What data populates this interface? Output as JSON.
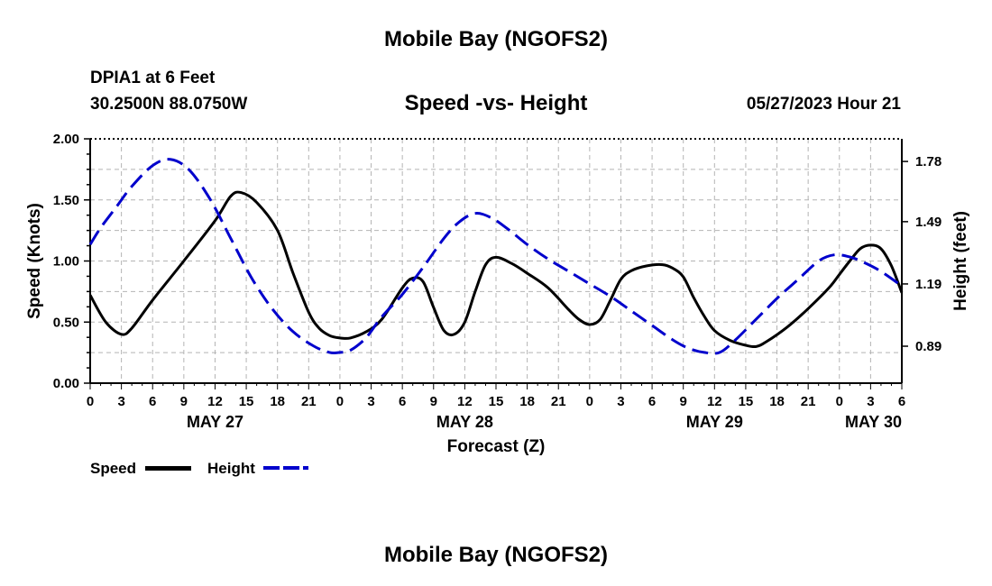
{
  "header": {
    "title": "Mobile Bay (NGOFS2)",
    "station": "DPIA1 at 6 Feet",
    "coordinates": "30.2500N  88.0750W",
    "subtitle": "Speed -vs- Height",
    "timestamp": "05/27/2023 Hour 21"
  },
  "footer": {
    "title": "Mobile Bay (NGOFS2)"
  },
  "legend": {
    "speed_label": "Speed",
    "height_label": "Height"
  },
  "chart_data": {
    "type": "line",
    "title": "Speed -vs- Height",
    "xlabel": "Forecast (Z)",
    "ylabel": "Speed (Knots)",
    "y2label": "Height (feet)",
    "x_range_hours": [
      0,
      78
    ],
    "ylim": [
      0,
      2.0
    ],
    "y2lim": [
      0.712,
      1.889
    ],
    "grid": true,
    "x_ticks": [
      {
        "hour": 0,
        "label": "0"
      },
      {
        "hour": 3,
        "label": "3"
      },
      {
        "hour": 6,
        "label": "6"
      },
      {
        "hour": 9,
        "label": "9"
      },
      {
        "hour": 12,
        "label": "12"
      },
      {
        "hour": 15,
        "label": "15"
      },
      {
        "hour": 18,
        "label": "18"
      },
      {
        "hour": 21,
        "label": "21"
      },
      {
        "hour": 24,
        "label": "0"
      },
      {
        "hour": 27,
        "label": "3"
      },
      {
        "hour": 30,
        "label": "6"
      },
      {
        "hour": 33,
        "label": "9"
      },
      {
        "hour": 36,
        "label": "12"
      },
      {
        "hour": 39,
        "label": "15"
      },
      {
        "hour": 42,
        "label": "18"
      },
      {
        "hour": 45,
        "label": "21"
      },
      {
        "hour": 48,
        "label": "0"
      },
      {
        "hour": 51,
        "label": "3"
      },
      {
        "hour": 54,
        "label": "6"
      },
      {
        "hour": 57,
        "label": "9"
      },
      {
        "hour": 60,
        "label": "12"
      },
      {
        "hour": 63,
        "label": "15"
      },
      {
        "hour": 66,
        "label": "18"
      },
      {
        "hour": 69,
        "label": "21"
      },
      {
        "hour": 72,
        "label": "0"
      },
      {
        "hour": 75,
        "label": "3"
      },
      {
        "hour": 78,
        "label": "6"
      }
    ],
    "date_labels": [
      {
        "hour": 12,
        "label": "MAY 27"
      },
      {
        "hour": 36,
        "label": "MAY 28"
      },
      {
        "hour": 60,
        "label": "MAY 29"
      },
      {
        "hour": 78,
        "label": "MAY 30"
      }
    ],
    "y_ticks": [
      {
        "value": 0.0,
        "label": "0.00"
      },
      {
        "value": 0.5,
        "label": "0.50"
      },
      {
        "value": 1.0,
        "label": "1.00"
      },
      {
        "value": 1.5,
        "label": "1.50"
      },
      {
        "value": 2.0,
        "label": "2.00"
      }
    ],
    "y2_ticks": [
      {
        "value": 0.89,
        "label": "0.89"
      },
      {
        "value": 1.19,
        "label": "1.19"
      },
      {
        "value": 1.49,
        "label": "1.49"
      },
      {
        "value": 1.78,
        "label": "1.78"
      }
    ],
    "series": [
      {
        "name": "Speed",
        "axis": "left",
        "color": "#000000",
        "dash": "solid",
        "points": [
          [
            0,
            0.72
          ],
          [
            1.5,
            0.5
          ],
          [
            3,
            0.4
          ],
          [
            4,
            0.45
          ],
          [
            6,
            0.68
          ],
          [
            9,
            1.0
          ],
          [
            12,
            1.33
          ],
          [
            13.5,
            1.53
          ],
          [
            14.5,
            1.56
          ],
          [
            16,
            1.48
          ],
          [
            18,
            1.25
          ],
          [
            19.5,
            0.9
          ],
          [
            21,
            0.58
          ],
          [
            22,
            0.45
          ],
          [
            23,
            0.39
          ],
          [
            24,
            0.37
          ],
          [
            25,
            0.37
          ],
          [
            26.5,
            0.42
          ],
          [
            28,
            0.52
          ],
          [
            30,
            0.78
          ],
          [
            31,
            0.86
          ],
          [
            32,
            0.83
          ],
          [
            33,
            0.62
          ],
          [
            34,
            0.43
          ],
          [
            35,
            0.4
          ],
          [
            36,
            0.5
          ],
          [
            37,
            0.75
          ],
          [
            38,
            0.97
          ],
          [
            39,
            1.03
          ],
          [
            40.5,
            0.98
          ],
          [
            42,
            0.9
          ],
          [
            44,
            0.78
          ],
          [
            46,
            0.6
          ],
          [
            47,
            0.52
          ],
          [
            48,
            0.48
          ],
          [
            49,
            0.52
          ],
          [
            50,
            0.68
          ],
          [
            51,
            0.85
          ],
          [
            52,
            0.92
          ],
          [
            53.5,
            0.96
          ],
          [
            55,
            0.97
          ],
          [
            56,
            0.94
          ],
          [
            57,
            0.87
          ],
          [
            58,
            0.7
          ],
          [
            59,
            0.55
          ],
          [
            60,
            0.43
          ],
          [
            61.5,
            0.35
          ],
          [
            63,
            0.31
          ],
          [
            64,
            0.3
          ],
          [
            65,
            0.34
          ],
          [
            67,
            0.46
          ],
          [
            69,
            0.61
          ],
          [
            71,
            0.78
          ],
          [
            72,
            0.89
          ],
          [
            73,
            1.0
          ],
          [
            74,
            1.1
          ],
          [
            75,
            1.13
          ],
          [
            76,
            1.1
          ],
          [
            77,
            0.96
          ],
          [
            78,
            0.74
          ]
        ]
      },
      {
        "name": "Height",
        "axis": "right",
        "color": "#0000cc",
        "dash": "dashed",
        "points": [
          [
            0,
            1.38
          ],
          [
            1,
            1.46
          ],
          [
            2.5,
            1.56
          ],
          [
            4,
            1.66
          ],
          [
            6,
            1.76
          ],
          [
            7.7,
            1.79
          ],
          [
            9.5,
            1.74
          ],
          [
            11.5,
            1.6
          ],
          [
            13.5,
            1.41
          ],
          [
            15.5,
            1.22
          ],
          [
            17.5,
            1.07
          ],
          [
            19.5,
            0.96
          ],
          [
            21.5,
            0.89
          ],
          [
            23,
            0.86
          ],
          [
            24,
            0.86
          ],
          [
            25,
            0.87
          ],
          [
            26.5,
            0.93
          ],
          [
            28,
            1.03
          ],
          [
            30,
            1.14
          ],
          [
            32,
            1.27
          ],
          [
            34,
            1.41
          ],
          [
            35.5,
            1.49
          ],
          [
            37,
            1.53
          ],
          [
            38.5,
            1.51
          ],
          [
            40,
            1.46
          ],
          [
            42,
            1.38
          ],
          [
            44,
            1.31
          ],
          [
            46,
            1.25
          ],
          [
            48,
            1.19
          ],
          [
            50,
            1.13
          ],
          [
            52,
            1.06
          ],
          [
            54,
            0.99
          ],
          [
            56,
            0.92
          ],
          [
            57.5,
            0.88
          ],
          [
            59,
            0.86
          ],
          [
            60.5,
            0.86
          ],
          [
            62,
            0.92
          ],
          [
            64,
            1.02
          ],
          [
            66,
            1.12
          ],
          [
            68,
            1.21
          ],
          [
            70,
            1.3
          ],
          [
            71.5,
            1.33
          ],
          [
            73,
            1.32
          ],
          [
            74.5,
            1.29
          ],
          [
            76,
            1.25
          ],
          [
            78,
            1.18
          ]
        ]
      }
    ]
  }
}
